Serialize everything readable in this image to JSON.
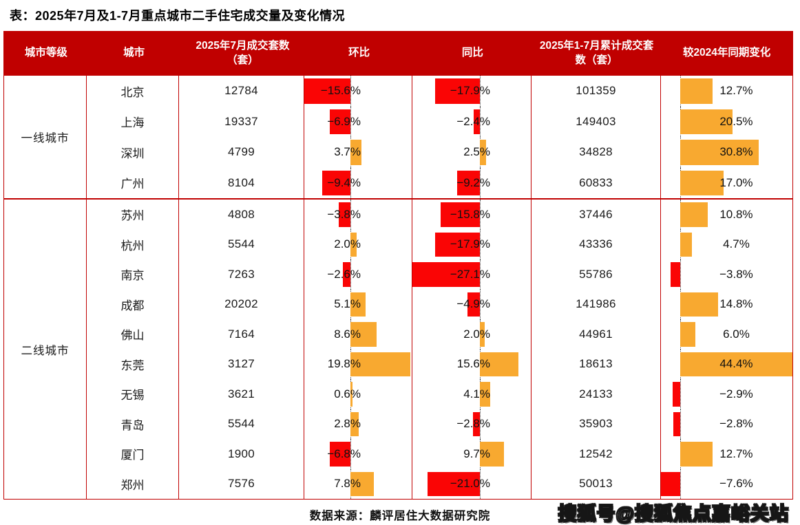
{
  "title": "表：2025年7月及1-7月重点城市二手住宅成交量及变化情况",
  "chart_data": {
    "type": "table",
    "title": "2025年7月及1-7月重点城市二手住宅成交量及变化情况",
    "columns": [
      "城市等级",
      "城市",
      "2025年7月成交套数（套）",
      "环比",
      "同比",
      "2025年1-7月累计成交套数（套）",
      "较2024年同期变化"
    ],
    "bar_columns": [
      "环比",
      "同比",
      "较2024年同期变化"
    ],
    "groups": [
      {
        "tier": "一线城市",
        "rows": [
          {
            "city": "北京",
            "jul": "12784",
            "mom": -15.6,
            "mom_label": "−15.6%",
            "yoy": -17.9,
            "yoy_label": "−17.9%",
            "cum": "101359",
            "chg": 12.7,
            "chg_label": "12.7%"
          },
          {
            "city": "上海",
            "jul": "19337",
            "mom": -6.9,
            "mom_label": "−6.9%",
            "yoy": -2.4,
            "yoy_label": "−2.4%",
            "cum": "149403",
            "chg": 20.5,
            "chg_label": "20.5%"
          },
          {
            "city": "深圳",
            "jul": "4799",
            "mom": 3.7,
            "mom_label": "3.7%",
            "yoy": 2.5,
            "yoy_label": "2.5%",
            "cum": "34828",
            "chg": 30.8,
            "chg_label": "30.8%"
          },
          {
            "city": "广州",
            "jul": "8104",
            "mom": -9.4,
            "mom_label": "−9.4%",
            "yoy": -9.2,
            "yoy_label": "−9.2%",
            "cum": "60833",
            "chg": 17.0,
            "chg_label": "17.0%"
          }
        ]
      },
      {
        "tier": "二线城市",
        "rows": [
          {
            "city": "苏州",
            "jul": "4808",
            "mom": -3.8,
            "mom_label": "−3.8%",
            "yoy": -15.8,
            "yoy_label": "−15.8%",
            "cum": "37446",
            "chg": 10.8,
            "chg_label": "10.8%"
          },
          {
            "city": "杭州",
            "jul": "5544",
            "mom": 2.0,
            "mom_label": "2.0%",
            "yoy": -17.9,
            "yoy_label": "−17.9%",
            "cum": "43336",
            "chg": 4.7,
            "chg_label": "4.7%"
          },
          {
            "city": "南京",
            "jul": "7263",
            "mom": -2.6,
            "mom_label": "−2.6%",
            "yoy": -27.1,
            "yoy_label": "−27.1%",
            "cum": "55786",
            "chg": -3.8,
            "chg_label": "−3.8%"
          },
          {
            "city": "成都",
            "jul": "20202",
            "mom": 5.1,
            "mom_label": "5.1%",
            "yoy": -4.9,
            "yoy_label": "−4.9%",
            "cum": "141986",
            "chg": 14.8,
            "chg_label": "14.8%"
          },
          {
            "city": "佛山",
            "jul": "7164",
            "mom": 8.6,
            "mom_label": "8.6%",
            "yoy": 2.0,
            "yoy_label": "2.0%",
            "cum": "44961",
            "chg": 6.0,
            "chg_label": "6.0%"
          },
          {
            "city": "东莞",
            "jul": "3127",
            "mom": 19.8,
            "mom_label": "19.8%",
            "yoy": 15.6,
            "yoy_label": "15.6%",
            "cum": "18613",
            "chg": 44.4,
            "chg_label": "44.4%"
          },
          {
            "city": "无锡",
            "jul": "3621",
            "mom": 0.6,
            "mom_label": "0.6%",
            "yoy": 4.1,
            "yoy_label": "4.1%",
            "cum": "24133",
            "chg": -2.9,
            "chg_label": "−2.9%"
          },
          {
            "city": "青岛",
            "jul": "5544",
            "mom": 2.8,
            "mom_label": "2.8%",
            "yoy": -2.8,
            "yoy_label": "−2.8%",
            "cum": "35903",
            "chg": -2.8,
            "chg_label": "−2.8%"
          },
          {
            "city": "厦门",
            "jul": "1900",
            "mom": -6.8,
            "mom_label": "−6.8%",
            "yoy": 9.7,
            "yoy_label": "9.7%",
            "cum": "12542",
            "chg": 12.7,
            "chg_label": "12.7%"
          },
          {
            "city": "郑州",
            "jul": "7576",
            "mom": 7.8,
            "mom_label": "7.8%",
            "yoy": -21.0,
            "yoy_label": "−21.0%",
            "cum": "50013",
            "chg": -7.6,
            "chg_label": "−7.6%"
          }
        ]
      }
    ]
  },
  "footer": {
    "source": "数据来源：麟评居住大数据研究院",
    "watermark": "搜狐号@搜狐焦点嘉峪关站"
  },
  "colors": {
    "table_red": "#C00000",
    "negative": "#FA0505",
    "positive": "#F8A930",
    "text": "#1A1A1A"
  }
}
